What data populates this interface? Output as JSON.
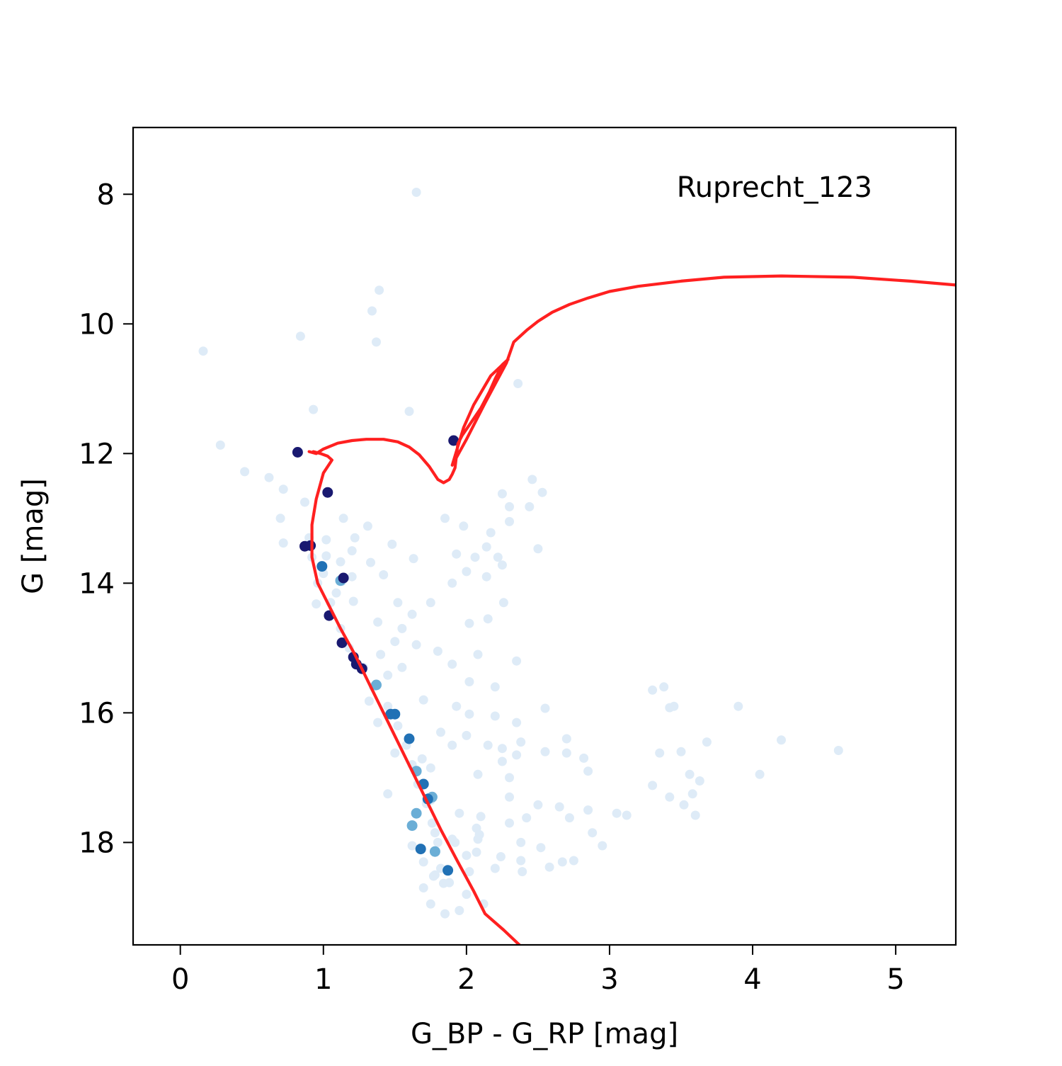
{
  "chart_data": {
    "type": "scatter",
    "title": "",
    "annotation": "Ruprecht_123",
    "xlabel": "G_BP - G_RP [mag]",
    "ylabel": "G [mag]",
    "xlim": [
      -0.33,
      5.42
    ],
    "ylim": [
      19.58,
      6.97
    ],
    "y_inverted": true,
    "grid": false,
    "x_ticks": [
      0,
      1,
      2,
      3,
      4,
      5
    ],
    "y_ticks": [
      8,
      10,
      12,
      14,
      16,
      18
    ],
    "colors": {
      "isochrone": "#ff2020",
      "members_high_prob": "#191970",
      "members_mid_prob": "#2171b5",
      "members_low_prob": "#6baed6",
      "field_stars": "#deebf7"
    },
    "series": [
      {
        "kind": "field",
        "color": "#deebf7",
        "points": [
          [
            1.65,
            7.97
          ],
          [
            1.39,
            9.48
          ],
          [
            1.34,
            9.8
          ],
          [
            1.37,
            10.28
          ],
          [
            0.16,
            10.42
          ],
          [
            0.84,
            10.19
          ],
          [
            2.36,
            10.92
          ],
          [
            0.93,
            11.32
          ],
          [
            1.6,
            11.35
          ],
          [
            0.28,
            11.87
          ],
          [
            0.45,
            12.28
          ],
          [
            0.62,
            12.37
          ],
          [
            2.25,
            12.62
          ],
          [
            2.46,
            12.4
          ],
          [
            2.53,
            12.6
          ],
          [
            0.72,
            12.55
          ],
          [
            2.3,
            12.82
          ],
          [
            2.44,
            12.82
          ],
          [
            2.3,
            13.05
          ],
          [
            1.85,
            13.0
          ],
          [
            1.98,
            13.12
          ],
          [
            0.7,
            13.0
          ],
          [
            1.14,
            13.0
          ],
          [
            1.31,
            13.12
          ],
          [
            2.17,
            13.22
          ],
          [
            0.9,
            13.3
          ],
          [
            1.02,
            13.33
          ],
          [
            1.22,
            13.3
          ],
          [
            1.48,
            13.4
          ],
          [
            2.14,
            13.44
          ],
          [
            2.5,
            13.47
          ],
          [
            0.72,
            13.38
          ],
          [
            1.2,
            13.5
          ],
          [
            1.63,
            13.62
          ],
          [
            1.93,
            13.55
          ],
          [
            2.06,
            13.6
          ],
          [
            2.22,
            13.6
          ],
          [
            1.02,
            13.58
          ],
          [
            1.12,
            13.67
          ],
          [
            1.33,
            13.68
          ],
          [
            2.0,
            13.82
          ],
          [
            2.14,
            13.9
          ],
          [
            2.25,
            13.72
          ],
          [
            1.9,
            14.0
          ],
          [
            1.0,
            13.85
          ],
          [
            1.2,
            13.9
          ],
          [
            1.42,
            13.87
          ],
          [
            1.09,
            14.15
          ],
          [
            1.21,
            14.28
          ],
          [
            1.52,
            14.3
          ],
          [
            1.75,
            14.3
          ],
          [
            2.26,
            14.3
          ],
          [
            0.95,
            14.32
          ],
          [
            1.62,
            14.48
          ],
          [
            2.15,
            14.55
          ],
          [
            1.38,
            14.6
          ],
          [
            1.55,
            14.7
          ],
          [
            2.02,
            14.62
          ],
          [
            1.5,
            14.9
          ],
          [
            1.65,
            14.95
          ],
          [
            1.8,
            15.05
          ],
          [
            2.08,
            15.1
          ],
          [
            2.35,
            15.2
          ],
          [
            1.4,
            15.1
          ],
          [
            1.9,
            15.25
          ],
          [
            1.55,
            15.3
          ],
          [
            1.45,
            15.42
          ],
          [
            2.02,
            15.52
          ],
          [
            2.2,
            15.6
          ],
          [
            3.3,
            15.65
          ],
          [
            3.38,
            15.6
          ],
          [
            1.32,
            15.82
          ],
          [
            1.7,
            15.8
          ],
          [
            1.93,
            15.9
          ],
          [
            3.42,
            15.92
          ],
          [
            3.45,
            15.9
          ],
          [
            3.9,
            15.9
          ],
          [
            2.55,
            15.93
          ],
          [
            2.02,
            16.02
          ],
          [
            2.2,
            16.05
          ],
          [
            2.35,
            16.15
          ],
          [
            1.38,
            16.15
          ],
          [
            1.82,
            16.3
          ],
          [
            2.0,
            16.35
          ],
          [
            2.15,
            16.5
          ],
          [
            2.25,
            16.55
          ],
          [
            2.38,
            16.45
          ],
          [
            2.55,
            16.6
          ],
          [
            2.7,
            16.4
          ],
          [
            3.68,
            16.45
          ],
          [
            4.2,
            16.42
          ],
          [
            4.6,
            16.58
          ],
          [
            3.35,
            16.62
          ],
          [
            3.5,
            16.6
          ],
          [
            1.5,
            16.62
          ],
          [
            1.9,
            16.5
          ],
          [
            2.25,
            16.75
          ],
          [
            2.35,
            16.65
          ],
          [
            2.7,
            16.62
          ],
          [
            2.82,
            16.7
          ],
          [
            1.75,
            16.85
          ],
          [
            2.08,
            16.95
          ],
          [
            2.3,
            17.0
          ],
          [
            2.85,
            16.9
          ],
          [
            3.56,
            16.95
          ],
          [
            3.63,
            17.05
          ],
          [
            4.05,
            16.95
          ],
          [
            3.3,
            17.12
          ],
          [
            3.58,
            17.25
          ],
          [
            3.42,
            17.3
          ],
          [
            3.52,
            17.42
          ],
          [
            1.45,
            17.25
          ],
          [
            1.75,
            17.35
          ],
          [
            2.3,
            17.3
          ],
          [
            2.5,
            17.42
          ],
          [
            2.65,
            17.45
          ],
          [
            2.85,
            17.5
          ],
          [
            3.05,
            17.55
          ],
          [
            3.12,
            17.58
          ],
          [
            3.6,
            17.58
          ],
          [
            1.95,
            17.55
          ],
          [
            2.1,
            17.6
          ],
          [
            2.3,
            17.7
          ],
          [
            2.42,
            17.62
          ],
          [
            2.72,
            17.62
          ],
          [
            2.88,
            17.85
          ],
          [
            1.78,
            17.85
          ],
          [
            1.92,
            18.0
          ],
          [
            2.38,
            18.0
          ],
          [
            2.52,
            18.08
          ],
          [
            2.95,
            18.05
          ],
          [
            2.08,
            17.95
          ],
          [
            2.0,
            18.2
          ],
          [
            2.24,
            18.22
          ],
          [
            2.38,
            18.28
          ],
          [
            2.67,
            18.3
          ],
          [
            2.75,
            18.28
          ],
          [
            1.7,
            18.3
          ],
          [
            1.82,
            18.4
          ],
          [
            2.02,
            18.45
          ],
          [
            2.2,
            18.4
          ],
          [
            2.39,
            18.45
          ],
          [
            2.58,
            18.38
          ],
          [
            1.78,
            18.5
          ],
          [
            1.88,
            18.62
          ],
          [
            2.0,
            18.8
          ],
          [
            2.12,
            18.95
          ],
          [
            1.75,
            18.95
          ],
          [
            1.95,
            19.05
          ],
          [
            0.87,
            12.75
          ],
          [
            0.92,
            13.6
          ],
          [
            0.96,
            14.0
          ],
          [
            1.05,
            14.3
          ],
          [
            1.12,
            14.7
          ],
          [
            1.18,
            15.0
          ],
          [
            1.28,
            15.3
          ],
          [
            1.35,
            15.6
          ],
          [
            1.45,
            15.9
          ],
          [
            1.52,
            16.2
          ],
          [
            1.58,
            16.5
          ],
          [
            1.62,
            16.8
          ],
          [
            1.66,
            17.1
          ],
          [
            1.72,
            17.4
          ],
          [
            1.76,
            17.7
          ],
          [
            1.8,
            18.0
          ],
          [
            1.62,
            18.05
          ],
          [
            1.7,
            18.7
          ],
          [
            1.85,
            19.1
          ],
          [
            1.13,
            13.97
          ],
          [
            1.69,
            16.71
          ],
          [
            1.77,
            18.52
          ],
          [
            1.84,
            18.63
          ],
          [
            2.07,
            17.78
          ],
          [
            2.07,
            18.15
          ],
          [
            2.09,
            17.88
          ],
          [
            1.9,
            17.95
          ]
        ]
      },
      {
        "kind": "members-low",
        "color": "#6baed6",
        "points": [
          [
            1.37,
            15.57
          ],
          [
            1.62,
            17.74
          ],
          [
            1.65,
            16.9
          ],
          [
            1.65,
            17.55
          ],
          [
            1.74,
            17.32
          ],
          [
            1.76,
            17.3
          ],
          [
            1.78,
            18.14
          ],
          [
            1.12,
            13.96
          ]
        ]
      },
      {
        "kind": "members-mid",
        "color": "#2171b5",
        "points": [
          [
            0.99,
            13.74
          ],
          [
            1.47,
            16.02
          ],
          [
            1.5,
            16.02
          ],
          [
            1.6,
            16.4
          ],
          [
            1.7,
            17.1
          ],
          [
            1.73,
            17.33
          ],
          [
            1.68,
            18.1
          ],
          [
            1.87,
            18.43
          ]
        ]
      },
      {
        "kind": "members-high",
        "color": "#191970",
        "points": [
          [
            0.82,
            11.98
          ],
          [
            1.03,
            12.6
          ],
          [
            0.87,
            13.43
          ],
          [
            0.91,
            13.42
          ],
          [
            1.14,
            13.92
          ],
          [
            1.04,
            14.5
          ],
          [
            1.13,
            14.92
          ],
          [
            1.21,
            15.14
          ],
          [
            1.23,
            15.25
          ],
          [
            1.27,
            15.32
          ],
          [
            1.91,
            11.8
          ]
        ]
      }
    ],
    "isochrone": {
      "name": "",
      "color": "#ff2020",
      "points": [
        [
          0.9,
          11.97
        ],
        [
          0.95,
          12.0
        ],
        [
          1.0,
          11.93
        ],
        [
          1.1,
          11.84
        ],
        [
          1.2,
          11.8
        ],
        [
          1.3,
          11.78
        ],
        [
          1.42,
          11.78
        ],
        [
          1.52,
          11.82
        ],
        [
          1.6,
          11.9
        ],
        [
          1.67,
          12.02
        ],
        [
          1.74,
          12.2
        ],
        [
          1.8,
          12.4
        ],
        [
          1.84,
          12.45
        ],
        [
          1.88,
          12.4
        ],
        [
          1.9,
          12.32
        ],
        [
          1.92,
          12.22
        ],
        [
          1.94,
          11.85
        ],
        [
          1.97,
          11.72
        ],
        [
          2.02,
          11.56
        ],
        [
          2.1,
          11.3
        ],
        [
          2.16,
          11.05
        ],
        [
          2.2,
          10.85
        ],
        [
          2.25,
          10.63
        ],
        [
          2.29,
          10.55
        ],
        [
          2.17,
          10.8
        ],
        [
          2.05,
          11.25
        ],
        [
          1.98,
          11.6
        ],
        [
          1.9,
          12.18
        ],
        [
          2.0,
          11.78
        ],
        [
          2.13,
          11.22
        ],
        [
          2.28,
          10.6
        ],
        [
          2.33,
          10.28
        ],
        [
          2.42,
          10.1
        ],
        [
          2.5,
          9.96
        ],
        [
          2.6,
          9.82
        ],
        [
          2.72,
          9.7
        ],
        [
          2.85,
          9.6
        ],
        [
          3.0,
          9.5
        ],
        [
          3.2,
          9.42
        ],
        [
          3.5,
          9.34
        ],
        [
          3.8,
          9.28
        ],
        [
          4.2,
          9.26
        ],
        [
          4.7,
          9.28
        ],
        [
          5.1,
          9.34
        ],
        [
          5.42,
          9.4
        ]
      ],
      "main_sequence": [
        [
          0.93,
          11.97
        ],
        [
          0.98,
          12.0
        ],
        [
          1.03,
          12.04
        ],
        [
          1.06,
          12.1
        ],
        [
          1.0,
          12.3
        ],
        [
          0.95,
          12.7
        ],
        [
          0.92,
          13.1
        ],
        [
          0.92,
          13.6
        ],
        [
          0.96,
          14.0
        ],
        [
          1.04,
          14.35
        ],
        [
          1.12,
          14.7
        ],
        [
          1.22,
          15.1
        ],
        [
          1.32,
          15.55
        ],
        [
          1.42,
          16.0
        ],
        [
          1.52,
          16.45
        ],
        [
          1.62,
          16.9
        ],
        [
          1.72,
          17.35
        ],
        [
          1.82,
          17.8
        ],
        [
          1.94,
          18.3
        ],
        [
          2.05,
          18.75
        ],
        [
          2.13,
          19.1
        ],
        [
          2.26,
          19.35
        ],
        [
          2.37,
          19.58
        ]
      ]
    }
  }
}
